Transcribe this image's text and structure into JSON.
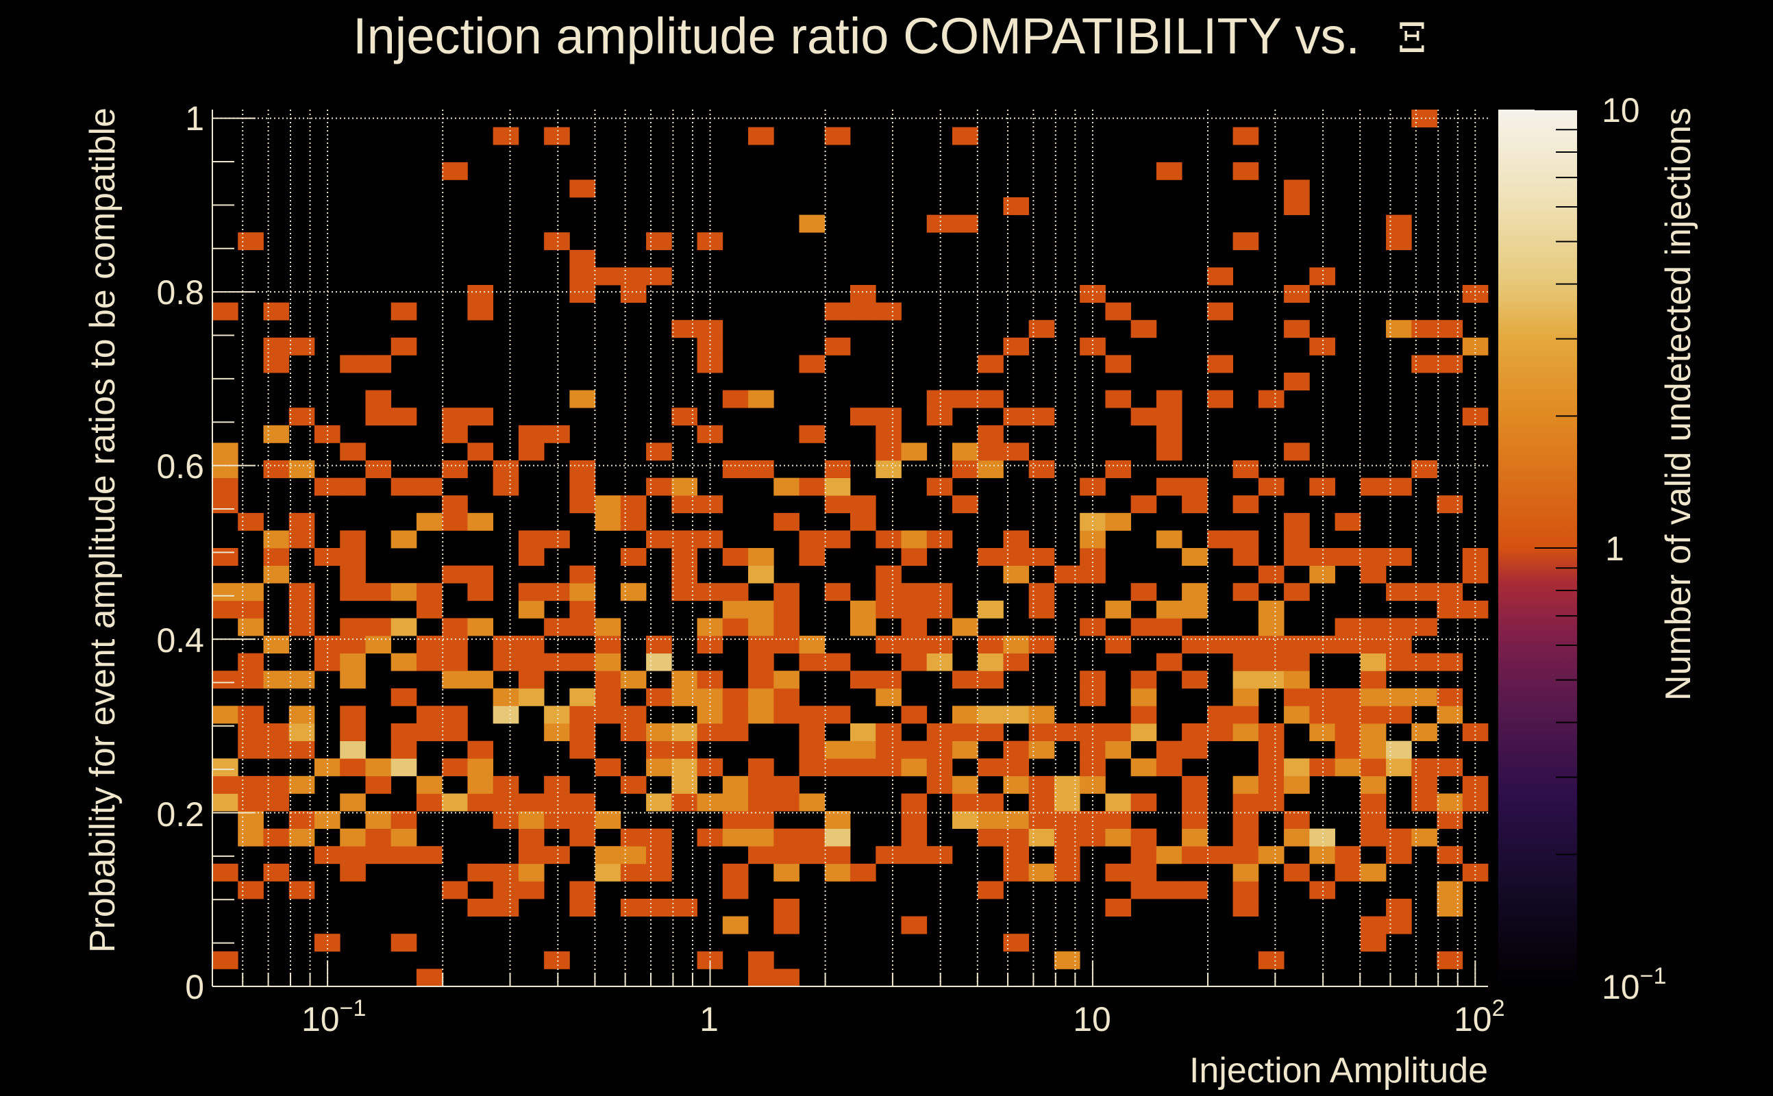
{
  "chart_data": {
    "type": "heatmap",
    "title": "Injection amplitude ratio COMPATIBILITY vs.",
    "title_symbol": "Ξ",
    "xlabel": "Injection Amplitude",
    "ylabel": "Probability for event amplitude ratios to be compatible",
    "grid": true,
    "x_axis": {
      "scale": "log",
      "range": [
        0.05,
        108
      ],
      "bins": 50,
      "tick_labels": [
        {
          "value": 0.1,
          "base": "10",
          "exp": "−1"
        },
        {
          "value": 1,
          "base": "1",
          "exp": ""
        },
        {
          "value": 10,
          "base": "10",
          "exp": ""
        },
        {
          "value": 100,
          "base": "10",
          "exp": "2"
        }
      ]
    },
    "y_axis": {
      "scale": "linear",
      "range": [
        0,
        1.01
      ],
      "bins": 50,
      "tick_labels": [
        {
          "value": 0,
          "label": "0"
        },
        {
          "value": 0.2,
          "label": "0.2"
        },
        {
          "value": 0.4,
          "label": "0.4"
        },
        {
          "value": 0.6,
          "label": "0.6"
        },
        {
          "value": 0.8,
          "label": "0.8"
        },
        {
          "value": 1,
          "label": "1"
        }
      ]
    },
    "colorbar": {
      "label": "Number of valid undetected injections",
      "scale": "log",
      "range": [
        0.1,
        10
      ],
      "tick_labels": [
        {
          "value": 10,
          "base": "10",
          "exp": ""
        },
        {
          "value": 1,
          "base": "1",
          "exp": ""
        },
        {
          "value": 0.1,
          "base": "10",
          "exp": "−1"
        }
      ],
      "palette": [
        {
          "value": 0.1,
          "color": "#000000"
        },
        {
          "value": 0.174,
          "color": "#160b2a"
        },
        {
          "value": 0.275,
          "color": "#2d0f4a"
        },
        {
          "value": 0.457,
          "color": "#5a1a4c"
        },
        {
          "value": 0.631,
          "color": "#7f1f4a"
        },
        {
          "value": 0.832,
          "color": "#a82b35"
        },
        {
          "value": 1,
          "color": "#d4520f"
        },
        {
          "value": 2,
          "color": "#e08a22"
        },
        {
          "value": 3,
          "color": "#e4a83c"
        },
        {
          "value": 4,
          "color": "#e6c878"
        },
        {
          "value": 6.31,
          "color": "#efe2b8"
        },
        {
          "value": 10,
          "color": "#f5f2ea"
        }
      ]
    },
    "cell_encoding": "rows_from_bottom[j] = [x-bins 1-25, x-bins 26-50] for y-bin j; each char is the count, '.' = empty",
    "rows_from_bottom": [
      [
        "........1............11..",
        "........................."
      ],
      [
        "1............1.....1.1...",
        "........2.......1......1."
      ],
      [
        "....1..1.................",
        "......1.............1...."
      ],
      [
        "....................2.1..",
        "..1.................11..."
      ],
      [
        "..........11..1.111...1..",
        "..........1....1.....1.2."
      ],
      [
        ".1.1.....1.11.1.....1....",
        ".....1.....111.1..1....2."
      ],
      [
        "1.1..1....112..311..1.2.2",
        "1.....121.11...2.1.12...1"
      ],
      [
        "....11111...11.221...1111",
        ".111..1.1..121112.21.1.1."
      ],
      [
        ".212.212....1.1.11.122114",
        "..1..1131121.2.1.24.112.."
      ],
      [
        ".2.12.21...12112....11..2",
        "..1.3221111..1.1.1..1..1."
      ],
      [
        "311..2..1311111..3122112.",
        "..1.11.13.31.1.11...1.121"
      ],
      [
        "1112..1.2.21.1..1.3.211..",
        "...12.2132...1.212..2.1.1"
      ],
      [
        "3...2124.12....1.231.1.11",
        "1121.11..1.21...13121311."
      ],
      [
        ".111.4.1..1...1..11....12",
        "21112.12.12.11..1..124..."
      ],
      [
        ".113.1.111...21.12311..1.",
        "31.111.11113.1121.212.2.1"
      ],
      [
        "21.2.1..11.4.3111..212111",
        "..1.2332...1..11.21111.2."
      ],
      [
        ".......1...23.31.122121..",
        ".2.......1.2...2.1112221."
      ],
      [
        "1122.2...22.1..12.21.12..",
        "11..11...1.1.1.332..1...."
      ],
      [
        ".1..12.211.11112.4...1.11",
        "..13.31.....1..111..3111."
      ],
      [
        "..2.112.11.11..1.1.1.112.",
        ".111.121..1..111111111..."
      ],
      [
        ".2.1.113.12..112...2121..",
        "2.1.2....1.11...2..1111.."
      ],
      [
        "11.1....1...2.1.....221..",
        "2111.3.1..2.22..2......11"
      ],
      [
        "22.1.1121.1.112.2.111.1.1",
        ".111...1...1.2.1.1...111."
      ],
      [
        "..2..1...11...1...1..3...",
        ".1....2.11......1.2.1...1"
      ],
      [
        "1.1.11......1...1.1.12.1.",
        "..1..111.1...2.1.11111..1"
      ],
      [
        "..21.1.2....11...111...11",
        ".121..1..2..2.11.1......."
      ],
      [
        ".1.1....212....21.....1..",
        "1........32......1.1....."
      ],
      [
        "1........1....121.11....1",
        "1...1......1.1.1.......1."
      ],
      [
        "1...11.11..1..1..12...213",
        "...1.....1..11..1.1.11..."
      ],
      [
        "2.12..1..1.1..1.....11..1",
        ".3..12.1..1....1......1.."
      ],
      [
        "2....1....1.1....1.......",
        ".12.211.....1....1......."
      ],
      [
        "..2.1....1..11.....1...1.",
        ".1...1......1............"
      ],
      [
        "...1..11.11.......1......",
        "11.1..11...11...........1"
      ],
      [
        "......1.......2.....12...",
        "...111....1.1.1.1........"
      ],
      [
        ".........................",
        ".................1......."
      ],
      [
        "..1..11............1...1.",
        ".....1....1...1.......11."
      ],
      [
        "..11...1...........1....1",
        "......1..1........1.....2"
      ],
      [
        "..................11.....",
        ".......1...1.....1...211."
      ],
      [
        "1.1....1..1.............1",
        "11........1...1.........."
      ],
      [
        "..........1...1.1........",
        "1........1.......1......1"
      ],
      [
        "..............1111.......",
        "..............1...1......"
      ],
      [
        "..............1..........",
        "........................."
      ],
      [
        ".1...........1...1.1.....",
        "...............1.....1..."
      ],
      [
        ".......................2.",
        "...11................1..."
      ],
      [
        ".........................",
        "......1..........1......."
      ],
      [
        "..............1..........",
        ".................1......."
      ],
      [
        ".........1...............",
        "............1..1........."
      ],
      [
        ".........................",
        "........................."
      ],
      [
        "...........1.1.......1..1",
        "....1..........1........."
      ],
      [
        ".........................",
        "......................1.."
      ]
    ]
  }
}
